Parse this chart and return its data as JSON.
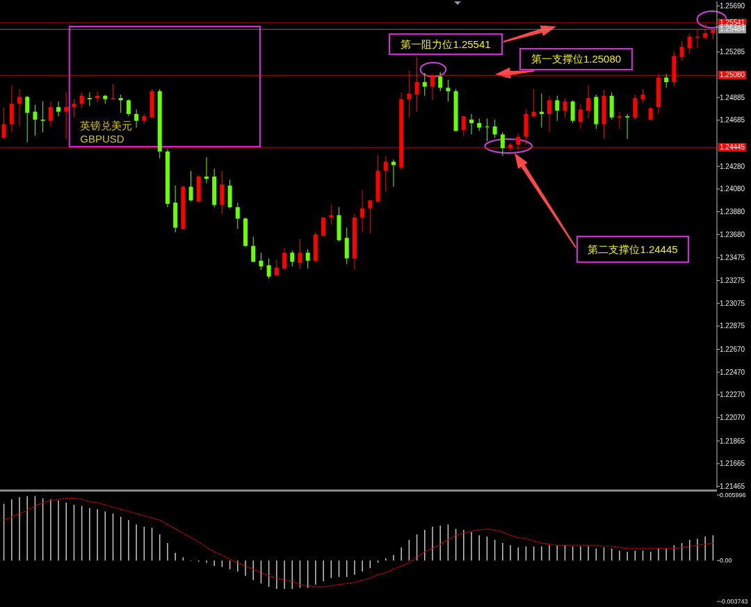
{
  "chart_data": [
    {
      "type": "candlestick",
      "title": "英镑兑美元",
      "subtitle": "GBPUSD",
      "tick_labels": "y",
      "annotations": [
        "第一阻力位1.25541",
        "第一支撑位1.25080",
        "第二支撑位1.24445"
      ],
      "categories": [
        null,
        null,
        null,
        null,
        null,
        null,
        null,
        null,
        null,
        null,
        null,
        null,
        null,
        null,
        null,
        null,
        null,
        null,
        null,
        null,
        null,
        null,
        null,
        null,
        null,
        null,
        null,
        null,
        null,
        null,
        null,
        null,
        null,
        null,
        null,
        null,
        null,
        null,
        null,
        null,
        null,
        null,
        null,
        null,
        null,
        null,
        null,
        null,
        null,
        null,
        null,
        null,
        null,
        null,
        null,
        null,
        null,
        null,
        null,
        null,
        null,
        null,
        null,
        null,
        null,
        null,
        null,
        null,
        null,
        null,
        null,
        null,
        null,
        null,
        null,
        null,
        null,
        null,
        null,
        null,
        null,
        null,
        null,
        null,
        null,
        null,
        null,
        null,
        null,
        null,
        null,
        null
      ],
      "ohlc": [
        [
          1.2453,
          1.248,
          1.2452,
          1.2465
        ],
        [
          1.2465,
          1.2499,
          1.2458,
          1.2483
        ],
        [
          1.2483,
          1.2496,
          1.2463,
          1.2489
        ],
        [
          1.2489,
          1.249,
          1.2449,
          1.2475
        ],
        [
          1.2476,
          1.2482,
          1.2455,
          1.2469
        ],
        [
          1.2469,
          1.2485,
          1.2458,
          1.2468
        ],
        [
          1.2468,
          1.2485,
          1.2463,
          1.248
        ],
        [
          1.248,
          1.2485,
          1.2472,
          1.2476
        ],
        [
          1.2476,
          1.2493,
          1.2452,
          1.248
        ],
        [
          1.248,
          1.2487,
          1.2471,
          1.2483
        ],
        [
          1.2483,
          1.2493,
          1.2479,
          1.249
        ],
        [
          1.2488,
          1.2493,
          1.2481,
          1.2487
        ],
        [
          1.2488,
          1.2494,
          1.2484,
          1.249
        ],
        [
          1.249,
          1.2491,
          1.2483,
          1.2487
        ],
        [
          1.2487,
          1.25,
          1.2487,
          1.2488
        ],
        [
          1.2488,
          1.2491,
          1.2475,
          1.2486
        ],
        [
          1.2486,
          1.2487,
          1.2472,
          1.2474
        ],
        [
          1.2474,
          1.2478,
          1.2462,
          1.2468
        ],
        [
          1.2468,
          1.2474,
          1.2465,
          1.2472
        ],
        [
          1.2471,
          1.2496,
          1.2471,
          1.2494
        ],
        [
          1.2494,
          1.2496,
          1.2435,
          1.2441
        ],
        [
          1.2441,
          1.2443,
          1.2392,
          1.2395
        ],
        [
          1.2396,
          1.2411,
          1.237,
          1.2374
        ],
        [
          1.2373,
          1.2411,
          1.2373,
          1.241
        ],
        [
          1.241,
          1.2424,
          1.2397,
          1.2398
        ],
        [
          1.2397,
          1.242,
          1.2396,
          1.2419
        ],
        [
          1.2419,
          1.2436,
          1.2413,
          1.2417
        ],
        [
          1.2419,
          1.2426,
          1.2392,
          1.2394
        ],
        [
          1.2394,
          1.2424,
          1.2386,
          1.2412
        ],
        [
          1.2411,
          1.2416,
          1.2391,
          1.2392
        ],
        [
          1.2392,
          1.2396,
          1.2373,
          1.2382
        ],
        [
          1.2382,
          1.2383,
          1.2357,
          1.2358
        ],
        [
          1.2358,
          1.2366,
          1.2344,
          1.2344
        ],
        [
          1.2345,
          1.2352,
          1.2337,
          1.234
        ],
        [
          1.2341,
          1.2347,
          1.2329,
          1.2331
        ],
        [
          1.2332,
          1.2346,
          1.2331,
          1.2339
        ],
        [
          1.2338,
          1.2356,
          1.2337,
          1.2352
        ],
        [
          1.2352,
          1.2354,
          1.234,
          1.2344
        ],
        [
          1.2343,
          1.2364,
          1.2338,
          1.2352
        ],
        [
          1.2352,
          1.2355,
          1.2338,
          1.2345
        ],
        [
          1.2345,
          1.237,
          1.2343,
          1.2368
        ],
        [
          1.2367,
          1.2383,
          1.2367,
          1.2383
        ],
        [
          1.2383,
          1.2394,
          1.2377,
          1.2385
        ],
        [
          1.2385,
          1.2392,
          1.2362,
          1.2363
        ],
        [
          1.2365,
          1.2374,
          1.2342,
          1.2347
        ],
        [
          1.2347,
          1.2386,
          1.2337,
          1.2383
        ],
        [
          1.2383,
          1.2407,
          1.237,
          1.2391
        ],
        [
          1.2391,
          1.2398,
          1.2369,
          1.2398
        ],
        [
          1.2397,
          1.2438,
          1.2396,
          1.2424
        ],
        [
          1.2424,
          1.2437,
          1.2406,
          1.2432
        ],
        [
          1.2432,
          1.2434,
          1.241,
          1.2429
        ],
        [
          1.2427,
          1.2493,
          1.2425,
          1.2487
        ],
        [
          1.2487,
          1.2512,
          1.2471,
          1.2492
        ],
        [
          1.2491,
          1.2524,
          1.2476,
          1.2502
        ],
        [
          1.2502,
          1.251,
          1.249,
          1.2498
        ],
        [
          1.2498,
          1.2509,
          1.2486,
          1.2507
        ],
        [
          1.2507,
          1.2511,
          1.2494,
          1.2497
        ],
        [
          1.2497,
          1.2504,
          1.2485,
          1.2494
        ],
        [
          1.2494,
          1.2496,
          1.2459,
          1.2459
        ],
        [
          1.246,
          1.2472,
          1.2455,
          1.2472
        ],
        [
          1.2469,
          1.2474,
          1.2456,
          1.2466
        ],
        [
          1.2466,
          1.247,
          1.2459,
          1.2462
        ],
        [
          1.2463,
          1.247,
          1.245,
          1.2463
        ],
        [
          1.2463,
          1.2469,
          1.2453,
          1.2456
        ],
        [
          1.2456,
          1.2458,
          1.2437,
          1.2444
        ],
        [
          1.2444,
          1.2449,
          1.2441,
          1.2447
        ],
        [
          1.2447,
          1.2457,
          1.2442,
          1.2454
        ],
        [
          1.2454,
          1.2478,
          1.2447,
          1.2474
        ],
        [
          1.2472,
          1.2496,
          1.2472,
          1.2476
        ],
        [
          1.2476,
          1.2492,
          1.2462,
          1.2474
        ],
        [
          1.2474,
          1.249,
          1.2458,
          1.2486
        ],
        [
          1.2486,
          1.249,
          1.2468,
          1.2477
        ],
        [
          1.2477,
          1.2488,
          1.2471,
          1.2485
        ],
        [
          1.2485,
          1.2486,
          1.2466,
          1.2468
        ],
        [
          1.2467,
          1.2483,
          1.2461,
          1.2478
        ],
        [
          1.2477,
          1.2499,
          1.247,
          1.2488
        ],
        [
          1.2489,
          1.2491,
          1.2461,
          1.2465
        ],
        [
          1.2465,
          1.2495,
          1.2452,
          1.249
        ],
        [
          1.249,
          1.2493,
          1.2469,
          1.2471
        ],
        [
          1.2471,
          1.2476,
          1.2461,
          1.2472
        ],
        [
          1.2472,
          1.2474,
          1.2452,
          1.2471
        ],
        [
          1.2471,
          1.2491,
          1.2469,
          1.2488
        ],
        [
          1.2487,
          1.2496,
          1.2484,
          1.2491
        ],
        [
          1.2469,
          1.248,
          1.2468,
          1.2479
        ],
        [
          1.248,
          1.2509,
          1.2474,
          1.2506
        ],
        [
          1.2506,
          1.2509,
          1.2497,
          1.2502
        ],
        [
          1.2502,
          1.2529,
          1.2498,
          1.2525
        ],
        [
          1.2524,
          1.2538,
          1.2521,
          1.2533
        ],
        [
          1.2532,
          1.2545,
          1.2527,
          1.2542
        ],
        [
          1.2541,
          1.2549,
          1.2532,
          1.2542
        ],
        [
          1.2541,
          1.2553,
          1.254,
          1.2545
        ],
        [
          1.2545,
          1.2548,
          1.254,
          1.2548
        ]
      ],
      "colors": [
        "#ff0000",
        "#ff0000",
        "#ff0000",
        "#66ff00",
        "#66ff00",
        "#66ff00",
        "#ff0000",
        "#66ff00",
        "#ff0000",
        "#ff0000",
        "#ff0000",
        "#66ff00",
        "#ff0000",
        "#66ff00",
        "#ff0000",
        "#66ff00",
        "#66ff00",
        "#66ff00",
        "#ff0000",
        "#ff0000",
        "#66ff00",
        "#66ff00",
        "#66ff00",
        "#ff0000",
        "#66ff00",
        "#ff0000",
        "#66ff00",
        "#66ff00",
        "#ff0000",
        "#66ff00",
        "#66ff00",
        "#66ff00",
        "#66ff00",
        "#66ff00",
        "#66ff00",
        "#ff0000",
        "#ff0000",
        "#66ff00",
        "#ff0000",
        "#66ff00",
        "#ff0000",
        "#ff0000",
        "#ff0000",
        "#66ff00",
        "#66ff00",
        "#ff0000",
        "#ff0000",
        "#ff0000",
        "#ff0000",
        "#ff0000",
        "#66ff00",
        "#ff0000",
        "#ff0000",
        "#ff0000",
        "#66ff00",
        "#ff0000",
        "#66ff00",
        "#66ff00",
        "#66ff00",
        "#ff0000",
        "#66ff00",
        "#66ff00",
        "#66ff00",
        "#66ff00",
        "#66ff00",
        "#ff0000",
        "#ff0000",
        "#ff0000",
        "#ff0000",
        "#66ff00",
        "#ff0000",
        "#66ff00",
        "#ff0000",
        "#66ff00",
        "#ff0000",
        "#ff0000",
        "#66ff00",
        "#ff0000",
        "#66ff00",
        "#ff0000",
        "#66ff00",
        "#ff0000",
        "#ff0000",
        "#ff0000",
        "#ff0000",
        "#66ff00",
        "#ff0000",
        "#ff0000",
        "#ff0000",
        "#ff0000",
        "#ff0000",
        "#ff0000"
      ],
      "ylim": [
        1.2145,
        1.2573
      ],
      "yticks": [
        {
          "value": 1.2569,
          "label": "1.25690"
        },
        1.25285,
        1.24885,
        1.24685,
        {
          "value": 1.2428,
          "label": "1.24280"
        },
        {
          "value": 1.2408,
          "label": "1.24080"
        },
        {
          "value": 1.2388,
          "label": "1.23880"
        },
        {
          "value": 1.2368,
          "label": "1.23680"
        },
        1.23475,
        1.23275,
        1.23075,
        1.22875,
        {
          "value": 1.2267,
          "label": "1.22670"
        },
        {
          "value": 1.2247,
          "label": "1.22470"
        },
        {
          "value": 1.2227,
          "label": "1.22270"
        },
        {
          "value": 1.2207,
          "label": "1.22070"
        },
        1.21865,
        1.21665,
        1.21465
      ],
      "ref_lines": [
        {
          "axis": "y",
          "value": 1.25541,
          "label": "1.25541",
          "color": "#ff0000"
        },
        {
          "axis": "y",
          "value": 1.25484,
          "label": "1.25484",
          "color": "#a0a0a0"
        },
        {
          "axis": "y",
          "value": 1.2508,
          "label": "1.25080",
          "color": "#ff0000"
        },
        {
          "axis": "y",
          "value": 1.24445,
          "label": "1.24445",
          "color": "#ff0000"
        }
      ]
    },
    {
      "type": "bar",
      "tick_labels": "y",
      "categories": [
        null,
        null,
        null,
        null,
        null,
        null,
        null,
        null,
        null,
        null,
        null,
        null,
        null,
        null,
        null,
        null,
        null,
        null,
        null,
        null,
        null,
        null,
        null,
        null,
        null,
        null,
        null,
        null,
        null,
        null,
        null,
        null,
        null,
        null,
        null,
        null,
        null,
        null,
        null,
        null,
        null,
        null,
        null,
        null,
        null,
        null,
        null,
        null,
        null,
        null,
        null,
        null,
        null,
        null,
        null,
        null,
        null,
        null,
        null,
        null,
        null,
        null,
        null,
        null,
        null,
        null,
        null,
        null,
        null,
        null,
        null,
        null,
        null,
        null,
        null,
        null,
        null,
        null,
        null,
        null,
        null,
        null,
        null,
        null,
        null,
        null,
        null,
        null,
        null,
        null,
        null,
        null
      ],
      "ylim": [
        -0.003743,
        0.005996
      ],
      "yticks": [
        0.005996,
        {
          "value": 0,
          "label": "0.00"
        },
        -0.003743
      ],
      "series": [
        {
          "type": "bar",
          "color": "#c8c8c8",
          "values": [
            0.0052,
            0.0056,
            0.0058,
            0.0059,
            0.0059,
            0.0057,
            0.0056,
            0.0055,
            0.0053,
            0.0051,
            0.005,
            0.0048,
            0.0047,
            0.0045,
            0.0043,
            0.004,
            0.0037,
            0.0033,
            0.0031,
            0.003,
            0.0024,
            0.0016,
            0.0007,
            0.0003,
            0.0,
            -0.0001,
            -0.0002,
            -0.0005,
            -0.0006,
            -0.0008,
            -0.001,
            -0.0014,
            -0.0018,
            -0.0021,
            -0.0024,
            -0.0026,
            -0.0026,
            -0.0026,
            -0.0025,
            -0.0025,
            -0.0022,
            -0.0019,
            -0.0016,
            -0.0015,
            -0.0015,
            -0.0013,
            -0.001,
            -0.0007,
            -0.0002,
            0.0002,
            0.0005,
            0.0012,
            0.0019,
            0.0024,
            0.0028,
            0.0031,
            0.0032,
            0.0033,
            0.0029,
            0.0028,
            0.0026,
            0.0023,
            0.0022,
            0.0019,
            0.0016,
            0.0014,
            0.0012,
            0.0013,
            0.0013,
            0.0013,
            0.0014,
            0.0014,
            0.0014,
            0.0013,
            0.0013,
            0.0013,
            0.0011,
            0.0012,
            0.0011,
            0.0009,
            0.0008,
            0.0009,
            0.0009,
            0.0008,
            0.0011,
            0.0011,
            0.0014,
            0.0016,
            0.0019,
            0.002,
            0.0022,
            0.0023
          ]
        },
        {
          "type": "line",
          "color": "#c00000",
          "line_style": "dashed",
          "values": [
            0.0037,
            0.004,
            0.0043,
            0.0046,
            0.005,
            0.0053,
            0.0055,
            0.0056,
            0.0057,
            0.0057,
            0.0056,
            0.0054,
            0.0053,
            0.0051,
            0.0049,
            0.0047,
            0.0045,
            0.0043,
            0.0041,
            0.0039,
            0.0037,
            0.0033,
            0.0029,
            0.0025,
            0.0021,
            0.0017,
            0.0012,
            0.0008,
            0.0005,
            0.0001,
            -0.0002,
            -0.0005,
            -0.0008,
            -0.0011,
            -0.0014,
            -0.0016,
            -0.0018,
            -0.0019,
            -0.0022,
            -0.0023,
            -0.0024,
            -0.0024,
            -0.0023,
            -0.0022,
            -0.0021,
            -0.002,
            -0.0018,
            -0.0016,
            -0.0013,
            -0.0011,
            -0.0008,
            -0.0005,
            -0.0002,
            0.0003,
            0.0008,
            0.0011,
            0.0015,
            0.0019,
            0.0023,
            0.0025,
            0.0027,
            0.0028,
            0.0029,
            0.0028,
            0.0026,
            0.0023,
            0.0021,
            0.002,
            0.0018,
            0.0016,
            0.0015,
            0.0014,
            0.0014,
            0.0014,
            0.0014,
            0.0014,
            0.0014,
            0.0013,
            0.0013,
            0.0012,
            0.0011,
            0.0011,
            0.0011,
            0.0011,
            0.0011,
            0.0011,
            0.0011,
            0.0012,
            0.0013,
            0.0014,
            0.0015,
            0.0016
          ]
        }
      ]
    }
  ]
}
